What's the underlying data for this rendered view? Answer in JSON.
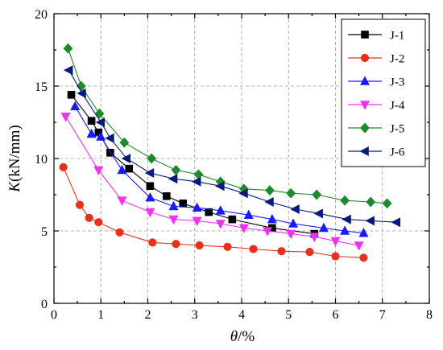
{
  "chart_data": {
    "type": "line",
    "title": "",
    "xlabel_italic": "θ",
    "xlabel_rest": "/%",
    "ylabel_italic": "K",
    "ylabel_rest": "(kN/mm)",
    "xlim": [
      0,
      8
    ],
    "ylim": [
      0,
      20
    ],
    "xticks": [
      0,
      1,
      2,
      3,
      4,
      5,
      6,
      7,
      8
    ],
    "yticks": [
      0,
      5,
      10,
      15,
      20
    ],
    "grid": true,
    "legend_position": "top-right",
    "series": [
      {
        "name": "J-1",
        "color": "#000000",
        "marker": "square",
        "x": [
          0.37,
          0.8,
          0.95,
          1.2,
          1.6,
          2.05,
          2.4,
          2.75,
          3.3,
          3.8,
          4.65,
          5.55
        ],
        "y": [
          14.4,
          12.6,
          11.8,
          10.4,
          9.3,
          8.1,
          7.4,
          6.9,
          6.3,
          5.8,
          5.2,
          4.8
        ]
      },
      {
        "name": "J-2",
        "color": "#e8311a",
        "marker": "circle",
        "x": [
          0.2,
          0.55,
          0.75,
          0.95,
          1.4,
          2.1,
          2.6,
          3.1,
          3.7,
          4.25,
          4.85,
          5.45,
          6.0,
          6.6
        ],
        "y": [
          9.4,
          6.8,
          5.9,
          5.6,
          4.9,
          4.2,
          4.1,
          4.0,
          3.9,
          3.75,
          3.6,
          3.55,
          3.25,
          3.15
        ]
      },
      {
        "name": "J-3",
        "color": "#1a1aff",
        "marker": "triangle-up",
        "x": [
          0.45,
          0.8,
          1.0,
          1.45,
          2.05,
          2.55,
          3.05,
          3.55,
          4.15,
          4.65,
          5.1,
          5.75,
          6.2,
          6.6
        ],
        "y": [
          13.6,
          11.7,
          11.5,
          9.2,
          7.3,
          6.7,
          6.6,
          6.4,
          6.1,
          5.8,
          5.5,
          5.2,
          5.0,
          4.85
        ]
      },
      {
        "name": "J-4",
        "color": "#ee33ee",
        "marker": "triangle-down",
        "x": [
          0.25,
          0.95,
          1.45,
          2.05,
          2.55,
          3.05,
          3.55,
          4.05,
          4.55,
          5.05,
          5.55,
          6.0,
          6.5
        ],
        "y": [
          12.9,
          9.2,
          7.1,
          6.3,
          5.8,
          5.7,
          5.5,
          5.2,
          5.0,
          4.8,
          4.6,
          4.3,
          4.0
        ]
      },
      {
        "name": "J-5",
        "color": "#1d8a2c",
        "marker": "diamond",
        "x": [
          0.3,
          0.58,
          0.97,
          1.5,
          2.08,
          2.6,
          3.08,
          3.55,
          4.05,
          4.6,
          5.05,
          5.6,
          6.2,
          6.75,
          7.1
        ],
        "y": [
          17.6,
          15.0,
          13.1,
          11.1,
          10.0,
          9.2,
          8.9,
          8.4,
          7.9,
          7.8,
          7.6,
          7.5,
          7.1,
          7.0,
          6.9
        ]
      },
      {
        "name": "J-6",
        "color": "#0a1a7a",
        "marker": "triangle-left",
        "x": [
          0.32,
          0.6,
          1.0,
          1.2,
          1.55,
          2.05,
          2.55,
          3.05,
          3.55,
          4.05,
          4.6,
          5.15,
          5.65,
          6.25,
          6.75,
          7.3
        ],
        "y": [
          16.1,
          14.5,
          12.5,
          11.4,
          10.0,
          9.0,
          8.6,
          8.4,
          8.1,
          7.6,
          7.0,
          6.5,
          6.2,
          5.8,
          5.7,
          5.6
        ]
      }
    ]
  }
}
